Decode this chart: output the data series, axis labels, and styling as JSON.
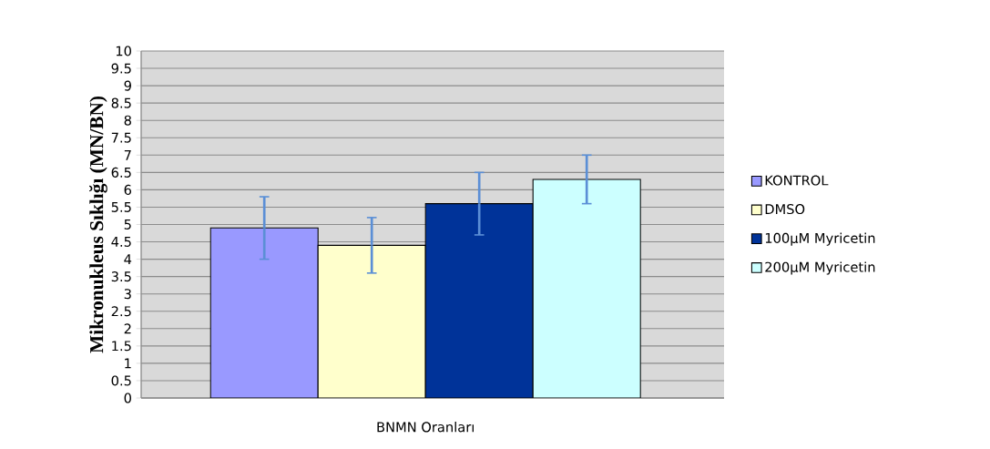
{
  "chart_data": {
    "type": "bar",
    "ylabel": "Mikronukleus Sıklığı (MN/BN)",
    "categories": [
      "BNMN Oranları"
    ],
    "series": [
      {
        "name": "KONTROL",
        "color": "#9999ff",
        "values": [
          4.9
        ],
        "errors": [
          0.9
        ]
      },
      {
        "name": "DMSO",
        "color": "#ffffcc",
        "values": [
          4.4
        ],
        "errors": [
          0.8
        ]
      },
      {
        "name": "100µM Myricetin",
        "color": "#003399",
        "values": [
          5.6
        ],
        "errors": [
          0.9
        ]
      },
      {
        "name": "200µM Myricetin",
        "color": "#ccffff",
        "values": [
          6.3
        ],
        "errors": [
          0.7
        ]
      }
    ],
    "ylim": [
      0,
      10
    ],
    "yticks": [
      0,
      0.5,
      1,
      1.5,
      2,
      2.5,
      3,
      3.5,
      4,
      4.5,
      5,
      5.5,
      6,
      6.5,
      7,
      7.5,
      8,
      8.5,
      9,
      9.5,
      10
    ],
    "grid": "y",
    "legend": "right"
  }
}
